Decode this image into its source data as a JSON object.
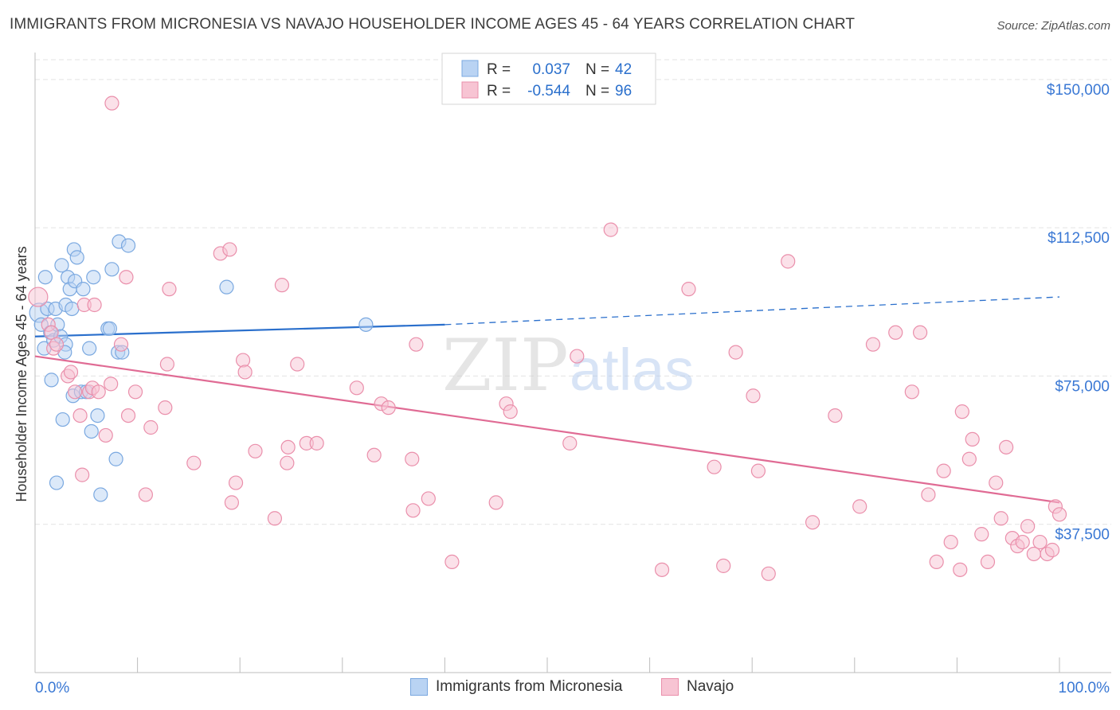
{
  "title": "IMMIGRANTS FROM MICRONESIA VS NAVAJO HOUSEHOLDER INCOME AGES 45 - 64 YEARS CORRELATION CHART",
  "source": "Source: ZipAtlas.com",
  "colors": {
    "blue_fill": "#b9d3f3",
    "blue_stroke": "#7aa8e0",
    "blue_line": "#2a6fcc",
    "pink_fill": "#f7c4d3",
    "pink_stroke": "#ea8fab",
    "pink_line": "#e06b94",
    "axis_label_color": "#3a78d4",
    "grid": "#e3e3e3"
  },
  "legend_top": {
    "rows": [
      {
        "r_label": "R =",
        "r_value": "0.037",
        "n_label": "N =",
        "n_value": "42",
        "series": "blue"
      },
      {
        "r_label": "R =",
        "r_value": "-0.544",
        "n_label": "N =",
        "n_value": "96",
        "series": "pink"
      }
    ]
  },
  "legend_bottom": [
    {
      "label": "Immigrants from Micronesia",
      "series": "blue"
    },
    {
      "label": "Navajo",
      "series": "pink"
    }
  ],
  "watermark": {
    "zip": "ZIP",
    "atlas": "atlas"
  },
  "chart_data": {
    "type": "scatter",
    "title": "IMMIGRANTS FROM MICRONESIA VS NAVAJO HOUSEHOLDER INCOME AGES 45 - 64 YEARS CORRELATION CHART",
    "xlabel": "",
    "ylabel": "Householder Income Ages 45 - 64 years",
    "xlim": [
      0,
      100
    ],
    "ylim": [
      0,
      155000
    ],
    "x_tick_labels": [
      "0.0%",
      "100.0%"
    ],
    "y_ticks": [
      37500,
      75000,
      112500,
      150000
    ],
    "y_tick_labels": [
      "$37,500",
      "$75,000",
      "$112,500",
      "$150,000"
    ],
    "grid": true,
    "series": [
      {
        "name": "Immigrants from Micronesia",
        "color": "blue",
        "trend": {
          "x0": 0,
          "y0": 85000,
          "x1": 40,
          "y1": 88000,
          "dashed_to_x": 100,
          "dashed_to_y": 95000
        },
        "points": [
          [
            0.4,
            91000
          ],
          [
            0.6,
            88000
          ],
          [
            0.9,
            82000
          ],
          [
            1.0,
            100000
          ],
          [
            1.2,
            92000
          ],
          [
            1.5,
            86000
          ],
          [
            1.6,
            74000
          ],
          [
            1.8,
            84000
          ],
          [
            2.0,
            92000
          ],
          [
            2.1,
            48000
          ],
          [
            2.2,
            88000
          ],
          [
            2.5,
            85000
          ],
          [
            2.6,
            103000
          ],
          [
            2.7,
            64000
          ],
          [
            3.0,
            83000
          ],
          [
            3.0,
            93000
          ],
          [
            3.2,
            100000
          ],
          [
            3.4,
            97000
          ],
          [
            3.7,
            70000
          ],
          [
            3.8,
            107000
          ],
          [
            3.9,
            99000
          ],
          [
            4.1,
            105000
          ],
          [
            4.5,
            71000
          ],
          [
            4.7,
            97000
          ],
          [
            5.0,
            71000
          ],
          [
            5.3,
            82000
          ],
          [
            5.5,
            61000
          ],
          [
            6.1,
            65000
          ],
          [
            6.4,
            45000
          ],
          [
            7.1,
            87000
          ],
          [
            7.3,
            87000
          ],
          [
            7.5,
            102000
          ],
          [
            7.9,
            54000
          ],
          [
            8.1,
            81000
          ],
          [
            8.2,
            109000
          ],
          [
            8.5,
            81000
          ],
          [
            9.1,
            108000
          ],
          [
            18.7,
            97500
          ],
          [
            32.3,
            88000
          ],
          [
            5.7,
            100000
          ],
          [
            3.6,
            92000
          ],
          [
            2.9,
            81000
          ]
        ]
      },
      {
        "name": "Navajo",
        "color": "pink",
        "trend": {
          "x0": 0,
          "y0": 80000,
          "x1": 100,
          "y1": 43000
        },
        "points": [
          [
            0.3,
            95000
          ],
          [
            1.3,
            88000
          ],
          [
            1.6,
            86000
          ],
          [
            1.8,
            82000
          ],
          [
            2.1,
            83000
          ],
          [
            3.2,
            75000
          ],
          [
            3.5,
            76000
          ],
          [
            3.9,
            71000
          ],
          [
            4.4,
            65000
          ],
          [
            4.6,
            50000
          ],
          [
            4.8,
            93000
          ],
          [
            5.3,
            71000
          ],
          [
            5.6,
            72000
          ],
          [
            5.8,
            93000
          ],
          [
            6.2,
            71000
          ],
          [
            6.9,
            60000
          ],
          [
            7.4,
            73000
          ],
          [
            7.5,
            144000
          ],
          [
            8.4,
            83000
          ],
          [
            8.9,
            100000
          ],
          [
            9.1,
            65000
          ],
          [
            9.8,
            71000
          ],
          [
            10.8,
            45000
          ],
          [
            11.3,
            62000
          ],
          [
            12.7,
            67000
          ],
          [
            12.9,
            78000
          ],
          [
            13.1,
            97000
          ],
          [
            15.5,
            53000
          ],
          [
            18.1,
            106000
          ],
          [
            19.0,
            107000
          ],
          [
            19.2,
            43000
          ],
          [
            19.6,
            48000
          ],
          [
            20.3,
            79000
          ],
          [
            20.5,
            76000
          ],
          [
            21.5,
            56000
          ],
          [
            23.4,
            39000
          ],
          [
            24.1,
            98000
          ],
          [
            24.6,
            53000
          ],
          [
            24.7,
            57000
          ],
          [
            25.6,
            78000
          ],
          [
            26.5,
            58000
          ],
          [
            27.5,
            58000
          ],
          [
            31.4,
            72000
          ],
          [
            33.1,
            55000
          ],
          [
            33.8,
            68000
          ],
          [
            34.5,
            67000
          ],
          [
            36.8,
            54000
          ],
          [
            36.9,
            41000
          ],
          [
            37.2,
            83000
          ],
          [
            38.4,
            44000
          ],
          [
            40.7,
            28000
          ],
          [
            45.0,
            43000
          ],
          [
            46.0,
            68000
          ],
          [
            46.4,
            66000
          ],
          [
            52.2,
            58000
          ],
          [
            52.9,
            80000
          ],
          [
            56.2,
            112000
          ],
          [
            61.2,
            26000
          ],
          [
            63.8,
            97000
          ],
          [
            66.3,
            52000
          ],
          [
            67.2,
            27000
          ],
          [
            68.4,
            81000
          ],
          [
            70.1,
            70000
          ],
          [
            70.6,
            51000
          ],
          [
            71.6,
            25000
          ],
          [
            73.5,
            104000
          ],
          [
            75.9,
            38000
          ],
          [
            78.1,
            65000
          ],
          [
            80.5,
            42000
          ],
          [
            81.8,
            83000
          ],
          [
            84.0,
            86000
          ],
          [
            85.6,
            71000
          ],
          [
            86.4,
            86000
          ],
          [
            87.2,
            45000
          ],
          [
            88.0,
            28000
          ],
          [
            88.7,
            51000
          ],
          [
            89.4,
            33000
          ],
          [
            90.3,
            26000
          ],
          [
            90.5,
            66000
          ],
          [
            91.2,
            54000
          ],
          [
            91.5,
            59000
          ],
          [
            92.4,
            35000
          ],
          [
            93.0,
            28000
          ],
          [
            93.8,
            48000
          ],
          [
            94.3,
            39000
          ],
          [
            94.8,
            57000
          ],
          [
            95.4,
            34000
          ],
          [
            95.9,
            32000
          ],
          [
            96.4,
            33000
          ],
          [
            96.9,
            37000
          ],
          [
            97.5,
            30000
          ],
          [
            98.1,
            33000
          ],
          [
            98.8,
            30000
          ],
          [
            99.3,
            31000
          ],
          [
            99.6,
            42000
          ],
          [
            100.0,
            40000
          ]
        ]
      }
    ]
  }
}
